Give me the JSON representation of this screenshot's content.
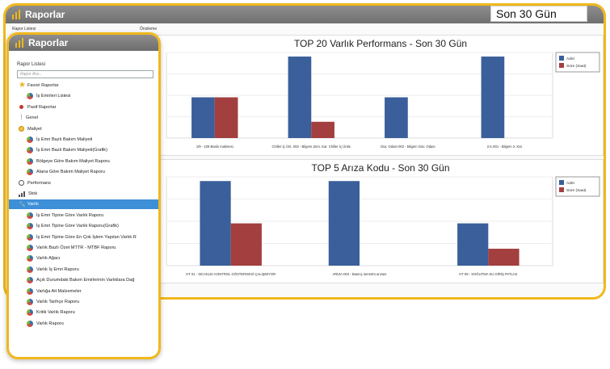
{
  "back_window": {
    "title": "Raporlar",
    "range": "Son 30 Gün",
    "rapor_listesi_label": "Rapor Listesi",
    "onizleme_label": "Önizleme"
  },
  "front_window": {
    "title": "Raporlar",
    "list_label": "Rapor Listesi",
    "search_placeholder": "Rapor Ara...",
    "items": [
      {
        "label": "Favori Raporlar",
        "icon": "star-icon",
        "level": 0
      },
      {
        "label": "İş Emirleri Listesi",
        "icon": "pie-chart-icon",
        "level": 1
      },
      {
        "label": "Pasif Raporlar",
        "icon": "red-dot-icon",
        "level": 0
      },
      {
        "label": "Genel",
        "icon": "vertical-dots-icon",
        "level": 0
      },
      {
        "label": "Maliyet",
        "icon": "coin-icon",
        "level": 0
      },
      {
        "label": "İş Emri Bazlı Bakım Maliyeti",
        "icon": "pie-chart-icon",
        "level": 1
      },
      {
        "label": "İş Emri Bazlı Bakım Maliyeti(Grafik)",
        "icon": "pie-chart-icon",
        "level": 1
      },
      {
        "label": "Bölgeye Göre Bakım Maliyet Raporu",
        "icon": "pie-chart-icon",
        "level": 1
      },
      {
        "label": "Alana Göre Bakım Maliyet Raporu",
        "icon": "pie-chart-icon",
        "level": 1
      },
      {
        "label": "Performans",
        "icon": "clock-icon",
        "level": 0
      },
      {
        "label": "Stok",
        "icon": "bar-chart-icon",
        "level": 0
      },
      {
        "label": "Varlık",
        "icon": "wrench-icon",
        "level": 0,
        "selected": true
      },
      {
        "label": "İş Emri Tipine Göre Varlık Raporu",
        "icon": "pie-chart-icon",
        "level": 1
      },
      {
        "label": "İş Emri Tipine Göre Varlık Raporu(Grafik)",
        "icon": "pie-chart-icon",
        "level": 1
      },
      {
        "label": "İş Emri Tipine Göre En Çok İşlem Yapılan Varlık R",
        "icon": "pie-chart-icon",
        "level": 1
      },
      {
        "label": "Varlık Bazlı Özet MTTR - MTBF Raporu",
        "icon": "pie-chart-icon",
        "level": 1
      },
      {
        "label": "Varlık Ağacı",
        "icon": "pie-chart-icon",
        "level": 1
      },
      {
        "label": "Varlık İş Emri Raporu",
        "icon": "pie-chart-icon",
        "level": 1
      },
      {
        "label": "Açık Durumdaki Bakım Emirlerinin Varlıklara Dağ",
        "icon": "pie-chart-icon",
        "level": 1
      },
      {
        "label": "Varlığa Ait Malzemeler",
        "icon": "pie-chart-icon",
        "level": 1
      },
      {
        "label": "Varlık Tarihçe Raporu",
        "icon": "pie-chart-icon",
        "level": 1
      },
      {
        "label": "Kritik Varlık Raporu",
        "icon": "pie-chart-icon",
        "level": 1
      },
      {
        "label": "Varlık Raporu",
        "icon": "pie-chart-icon",
        "level": 1
      }
    ]
  },
  "colors": {
    "accent": "#f0b81c",
    "adet": "#3a5f9a",
    "sure": "#a33f3f",
    "selected": "#3d8fd8"
  },
  "chart_data": [
    {
      "type": "bar",
      "title": "TOP 20 Varlık Performans - Son 30 Gün",
      "categories": [
        "1/9 - 109 Baskı makinesi",
        "Chiller İç Ünt. 003 - Bilgem Zem. Kar. Chiller İç Ünite",
        "Güv. Odası-002 - Bilgem Güv. Odası",
        "2.K.001 - Bilgem 2. Kat"
      ],
      "series": [
        {
          "name": "Adet",
          "values": [
            1,
            2,
            1,
            2
          ]
        },
        {
          "name": "Süre (Saat)",
          "values": [
            1,
            0.4,
            0,
            0
          ]
        }
      ],
      "ylim": [
        0,
        2.1
      ],
      "legend": "top-right",
      "grid": true
    },
    {
      "type": "bar",
      "title": "TOP 5 Arıza Kodu - Son 30 Gün",
      "categories": [
        "HT 01 - SICAKLIK KONTROL GÖSTERGESİ ÇALIŞMIYOR",
        "ARIZA-004 - Basınç sensörü arızası",
        "HT 09 - SOĞUTMA SU GİRİŞ PATLAK"
      ],
      "series": [
        {
          "name": "Adet",
          "values": [
            2,
            2,
            1
          ]
        },
        {
          "name": "Süre (Saat)",
          "values": [
            1,
            0,
            0.4
          ]
        }
      ],
      "ylim": [
        0,
        2.1
      ],
      "legend": "top-right",
      "grid": true
    }
  ]
}
